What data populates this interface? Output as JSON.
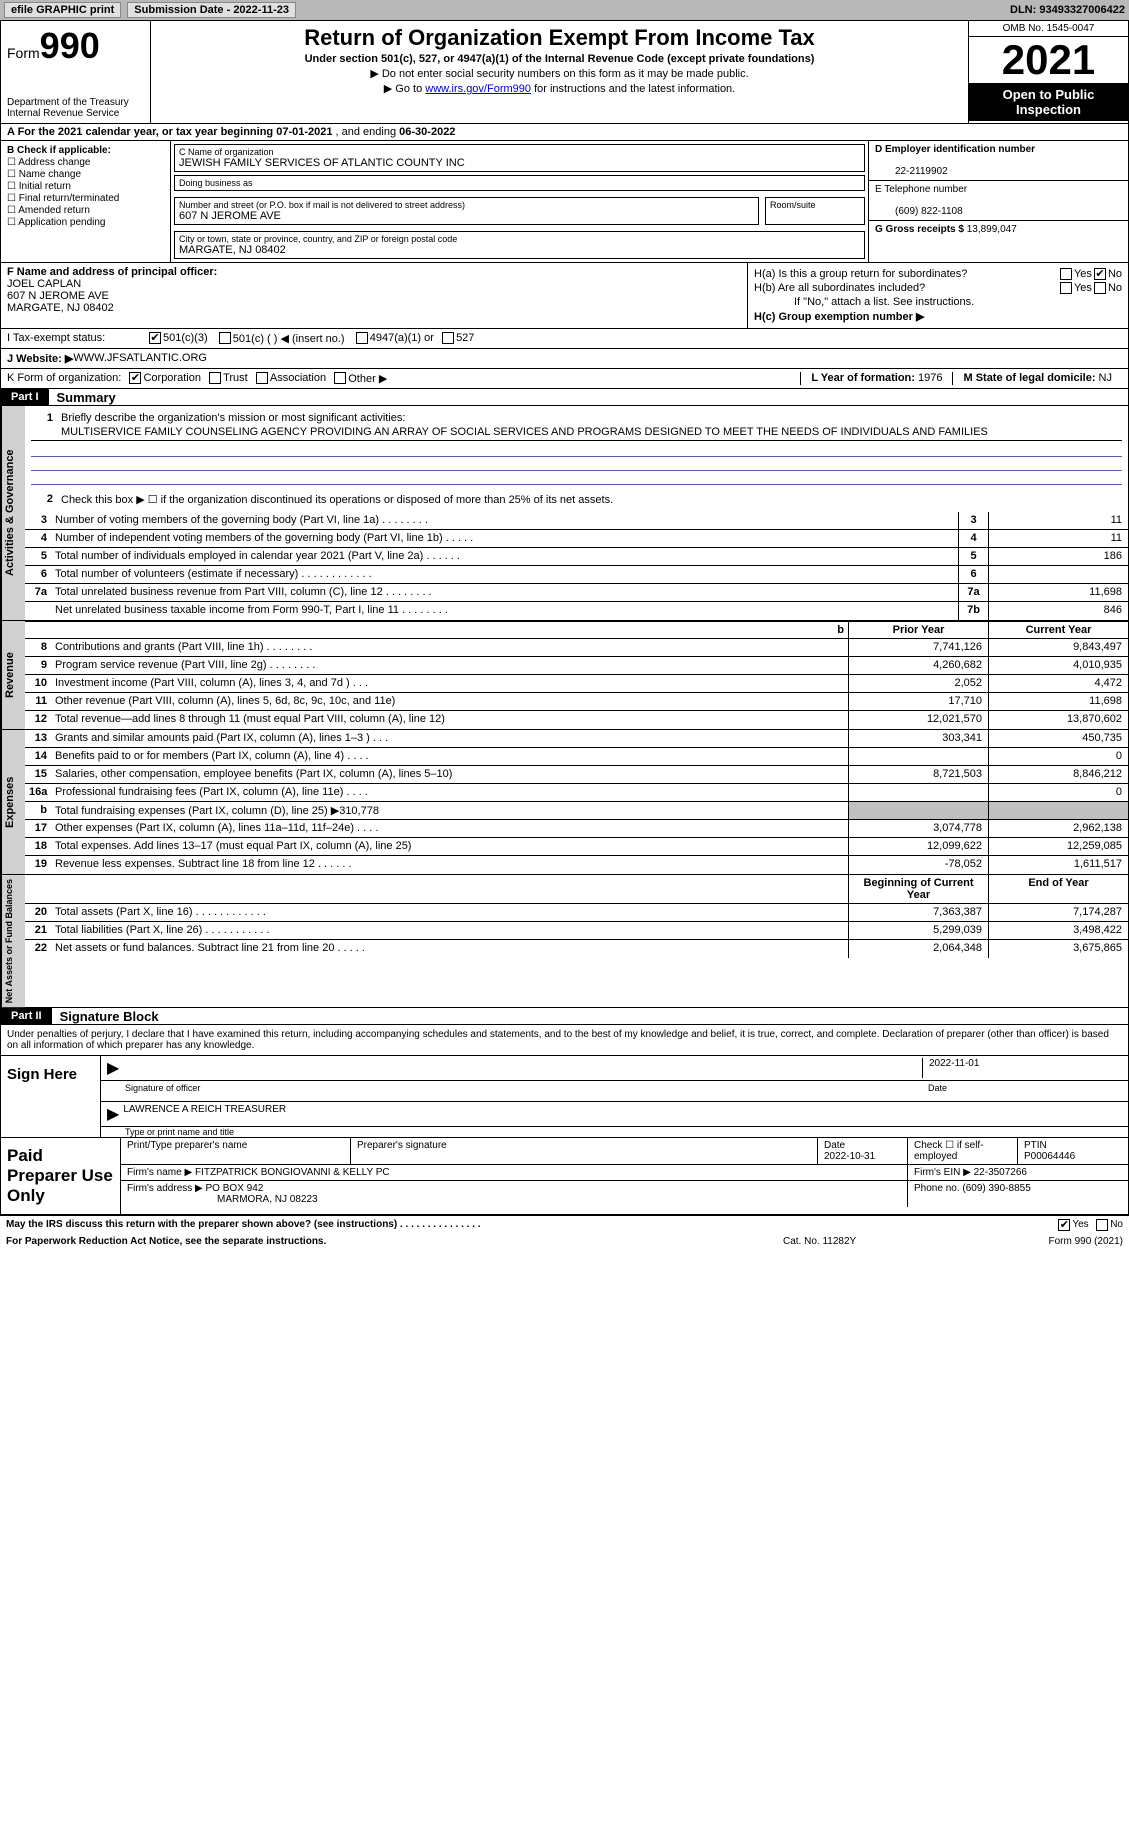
{
  "topbar": {
    "efile": "efile GRAPHIC print",
    "submission": "Submission Date - 2022-11-23",
    "dln": "DLN: 93493327006422"
  },
  "header": {
    "form": "Form",
    "formnum": "990",
    "dept": "Department of the Treasury\nInternal Revenue Service",
    "title": "Return of Organization Exempt From Income Tax",
    "subtitle": "Under section 501(c), 527, or 4947(a)(1) of the Internal Revenue Code (except private foundations)",
    "note1": "▶ Do not enter social security numbers on this form as it may be made public.",
    "note2": "▶ Go to ",
    "link": "www.irs.gov/Form990",
    "note3": " for instructions and the latest information.",
    "omb": "OMB No. 1545-0047",
    "year": "2021",
    "inspect": "Open to Public Inspection"
  },
  "rowA": {
    "text": "A For the 2021 calendar year, or tax year beginning ",
    "begin": "07-01-2021",
    "mid": "    , and ending ",
    "end": "06-30-2022"
  },
  "colB": {
    "header": "B Check if applicable:",
    "items": [
      "Address change",
      "Name change",
      "Initial return",
      "Final return/terminated",
      "Amended return",
      "Application pending"
    ]
  },
  "colC": {
    "nameLabel": "C Name of organization",
    "name": "JEWISH FAMILY SERVICES OF ATLANTIC COUNTY INC",
    "dba": "Doing business as",
    "addrLabel": "Number and street (or P.O. box if mail is not delivered to street address)",
    "addr": "607 N JEROME AVE",
    "room": "Room/suite",
    "cityLabel": "City or town, state or province, country, and ZIP or foreign postal code",
    "city": "MARGATE, NJ  08402"
  },
  "colD": {
    "einLabel": "D Employer identification number",
    "ein": "22-2119902",
    "telLabel": "E Telephone number",
    "tel": "(609) 822-1108",
    "grossLabel": "G Gross receipts $ ",
    "gross": "13,899,047"
  },
  "colF": {
    "label": "F Name and address of principal officer:",
    "name": "JOEL CAPLAN",
    "addr1": "607 N JEROME AVE",
    "addr2": "MARGATE, NJ  08402"
  },
  "colH": {
    "ha": "H(a)  Is this a group return for subordinates?",
    "hb": "H(b)  Are all subordinates included?",
    "hnote": "If \"No,\" attach a list. See instructions.",
    "hc": "H(c)  Group exemption number ▶",
    "yes": "Yes",
    "no": "No"
  },
  "taxStatus": {
    "label": "I    Tax-exempt status:",
    "opts": [
      "501(c)(3)",
      "501(c) (   ) ◀ (insert no.)",
      "4947(a)(1) or",
      "527"
    ]
  },
  "website": {
    "label": "J   Website: ▶  ",
    "val": "WWW.JFSATLANTIC.ORG"
  },
  "rowK": {
    "label": "K Form of organization:",
    "opts": [
      "Corporation",
      "Trust",
      "Association",
      "Other ▶"
    ],
    "yearLabel": "L Year of formation: ",
    "year": "1976",
    "stateLabel": "M State of legal domicile: ",
    "state": "NJ"
  },
  "part1": {
    "label": "Part I",
    "title": "Summary"
  },
  "sideLabels": {
    "s1": "Activities & Governance",
    "s2": "Revenue",
    "s3": "Expenses",
    "s4": "Net Assets or Fund Balances"
  },
  "summary": {
    "l1": "Briefly describe the organization's mission or most significant activities:",
    "mission": "MULTISERVICE FAMILY COUNSELING AGENCY PROVIDING AN ARRAY OF SOCIAL SERVICES AND PROGRAMS DESIGNED TO MEET THE NEEDS OF INDIVIDUALS AND FAMILIES",
    "l2": "Check this box ▶ ☐  if the organization discontinued its operations or disposed of more than 25% of its net assets.",
    "rows": [
      {
        "n": "3",
        "d": "Number of voting members of the governing body (Part VI, line 1a)   .    .    .    .    .    .    .    .",
        "b": "3",
        "v": "11"
      },
      {
        "n": "4",
        "d": "Number of independent voting members of the governing body (Part VI, line 1b)  .    .    .    .    .",
        "b": "4",
        "v": "11"
      },
      {
        "n": "5",
        "d": "Total number of individuals employed in calendar year 2021 (Part V, line 2a)   .    .    .    .    .    .",
        "b": "5",
        "v": "186"
      },
      {
        "n": "6",
        "d": "Total number of volunteers (estimate if necessary)    .    .    .    .    .    .    .    .    .    .    .    .",
        "b": "6",
        "v": ""
      },
      {
        "n": "7a",
        "d": "Total unrelated business revenue from Part VIII, column (C), line 12   .    .    .    .    .    .    .    .",
        "b": "7a",
        "v": "11,698"
      },
      {
        "n": "",
        "d": "Net unrelated business taxable income from Form 990-T, Part I, line 11  .    .    .    .    .    .    .    .",
        "b": "7b",
        "v": "846"
      }
    ]
  },
  "revExpHdr": {
    "prior": "Prior Year",
    "current": "Current Year"
  },
  "revenue": [
    {
      "n": "8",
      "d": "Contributions and grants (Part VIII, line 1h)    .    .    .    .    .    .    .    .",
      "p": "7,741,126",
      "c": "9,843,497"
    },
    {
      "n": "9",
      "d": "Program service revenue (Part VIII, line 2g)   .    .    .    .    .    .    .    .",
      "p": "4,260,682",
      "c": "4,010,935"
    },
    {
      "n": "10",
      "d": "Investment income (Part VIII, column (A), lines 3, 4, and 7d )    .    .    .",
      "p": "2,052",
      "c": "4,472"
    },
    {
      "n": "11",
      "d": "Other revenue (Part VIII, column (A), lines 5, 6d, 8c, 9c, 10c, and 11e)",
      "p": "17,710",
      "c": "11,698"
    },
    {
      "n": "12",
      "d": "Total revenue—add lines 8 through 11 (must equal Part VIII, column (A), line 12)",
      "p": "12,021,570",
      "c": "13,870,602"
    }
  ],
  "expenses": [
    {
      "n": "13",
      "d": "Grants and similar amounts paid (Part IX, column (A), lines 1–3 )  .    .    .",
      "p": "303,341",
      "c": "450,735"
    },
    {
      "n": "14",
      "d": "Benefits paid to or for members (Part IX, column (A), line 4)  .    .    .    .",
      "p": "",
      "c": "0"
    },
    {
      "n": "15",
      "d": "Salaries, other compensation, employee benefits (Part IX, column (A), lines 5–10)",
      "p": "8,721,503",
      "c": "8,846,212"
    },
    {
      "n": "16a",
      "d": "Professional fundraising fees (Part IX, column (A), line 11e)   .    .    .    .",
      "p": "",
      "c": "0"
    },
    {
      "n": "b",
      "d": "Total fundraising expenses (Part IX, column (D), line 25) ▶310,778",
      "p": "shade",
      "c": "shade"
    },
    {
      "n": "17",
      "d": "Other expenses (Part IX, column (A), lines 11a–11d, 11f–24e)   .    .    .    .",
      "p": "3,074,778",
      "c": "2,962,138"
    },
    {
      "n": "18",
      "d": "Total expenses. Add lines 13–17 (must equal Part IX, column (A), line 25)",
      "p": "12,099,622",
      "c": "12,259,085"
    },
    {
      "n": "19",
      "d": "Revenue less expenses. Subtract line 18 from line 12  .    .    .    .    .    .",
      "p": "-78,052",
      "c": "1,611,517"
    }
  ],
  "netHdr": {
    "begin": "Beginning of Current Year",
    "end": "End of Year"
  },
  "net": [
    {
      "n": "20",
      "d": "Total assets (Part X, line 16)  .    .    .    .    .    .    .    .    .    .    .    .",
      "p": "7,363,387",
      "c": "7,174,287"
    },
    {
      "n": "21",
      "d": "Total liabilities (Part X, line 26)   .    .    .    .    .    .    .    .    .    .    .",
      "p": "5,299,039",
      "c": "3,498,422"
    },
    {
      "n": "22",
      "d": "Net assets or fund balances. Subtract line 21 from line 20  .    .    .    .    .",
      "p": "2,064,348",
      "c": "3,675,865"
    }
  ],
  "part2": {
    "label": "Part II",
    "title": "Signature Block"
  },
  "sig": {
    "intro": "Under penalties of perjury, I declare that I have examined this return, including accompanying schedules and statements, and to the best of my knowledge and belief, it is true, correct, and complete. Declaration of preparer (other than officer) is based on all information of which preparer has any knowledge.",
    "signHere": "Sign Here",
    "sigOfficer": "Signature of officer",
    "date": "2022-11-01",
    "dateLbl": "Date",
    "name": "LAWRENCE A REICH  TREASURER",
    "nameLbl": "Type or print name and title"
  },
  "prep": {
    "label": "Paid Preparer Use Only",
    "h1": "Print/Type preparer's name",
    "h2": "Preparer's signature",
    "h3": "Date",
    "date": "2022-10-31",
    "h4": "Check ☐ if self-employed",
    "h5": "PTIN",
    "ptin": "P00064446",
    "firmLbl": "Firm's name      ▶ ",
    "firm": "FITZPATRICK BONGIOVANNI & KELLY PC",
    "einLbl": "Firm's EIN ▶ ",
    "ein": "22-3507266",
    "addrLbl": "Firm's address ▶ ",
    "addr1": "PO BOX 942",
    "addr2": "MARMORA, NJ  08223",
    "phoneLbl": "Phone no. ",
    "phone": "(609) 390-8855"
  },
  "footer": {
    "discuss": "May the IRS discuss this return with the preparer shown above? (see instructions)   .    .    .    .    .    .    .    .    .    .    .    .    .    .    .",
    "yes": "Yes",
    "no": "No",
    "paperwork": "For Paperwork Reduction Act Notice, see the separate instructions.",
    "cat": "Cat. No. 11282Y",
    "form": "Form 990 (2021)"
  }
}
